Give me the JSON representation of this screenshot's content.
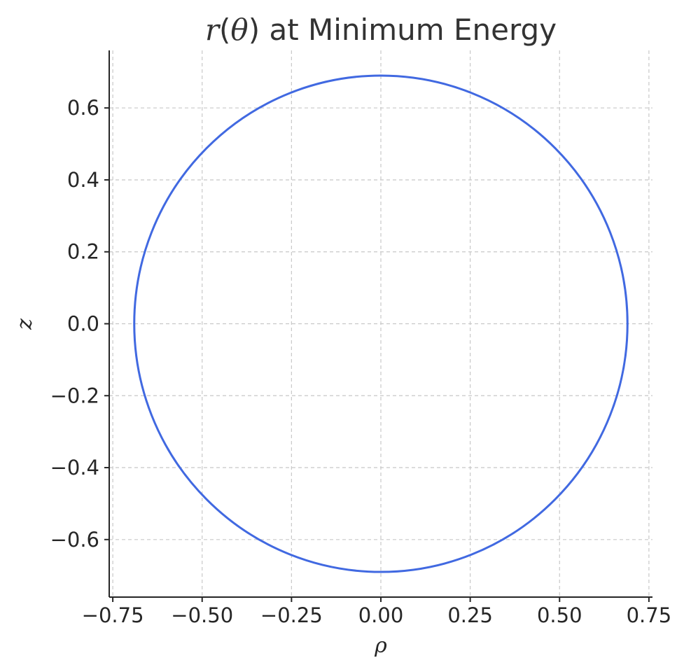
{
  "chart_data": {
    "type": "line",
    "title": {
      "func": "r",
      "arg": "θ",
      "rest": " at Minimum Energy"
    },
    "xlabel": "ρ",
    "ylabel": "z",
    "xlim": [
      -0.76,
      0.76
    ],
    "ylim": [
      -0.76,
      0.76
    ],
    "xticks": [
      -0.75,
      -0.5,
      -0.25,
      0.0,
      0.25,
      0.5,
      0.75
    ],
    "xtick_labels": [
      "−0.75",
      "−0.50",
      "−0.25",
      "0.00",
      "0.25",
      "0.50",
      "0.75"
    ],
    "yticks": [
      -0.6,
      -0.4,
      -0.2,
      0.0,
      0.2,
      0.4,
      0.6
    ],
    "ytick_labels": [
      "−0.6",
      "−0.4",
      "−0.2",
      "0.0",
      "0.2",
      "0.4",
      "0.6"
    ],
    "grid": true,
    "series": [
      {
        "shape": "circle",
        "center": [
          0.0,
          0.0
        ],
        "radius": 0.69,
        "color": "#4169e1"
      }
    ]
  }
}
